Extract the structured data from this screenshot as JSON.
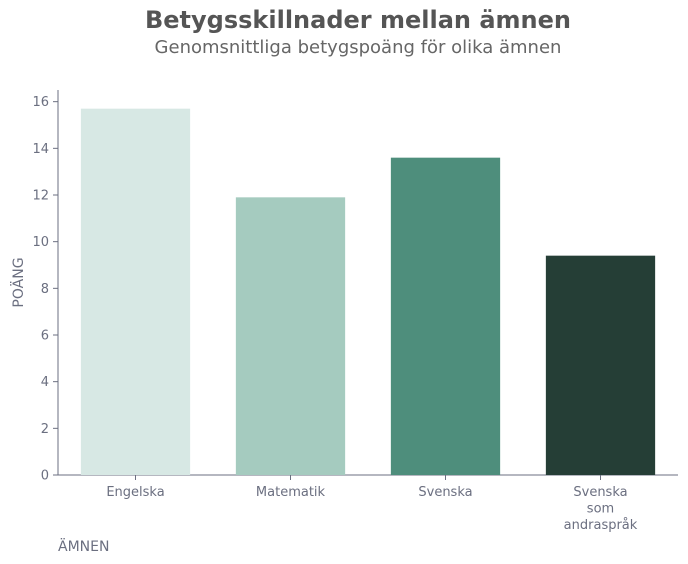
{
  "chart_data": {
    "type": "bar",
    "title": "Betygsskillnader mellan ämnen",
    "subtitle": "Genomsnittliga betygspoäng för olika ämnen",
    "xlabel": "ÄMNEN",
    "ylabel": "POÄNG",
    "categories": [
      "Engelska",
      "Matematik",
      "Svenska",
      "Svenska som andraspråk"
    ],
    "category_lines": [
      [
        "Engelska"
      ],
      [
        "Matematik"
      ],
      [
        "Svenska"
      ],
      [
        "Svenska",
        "som",
        "andraspråk"
      ]
    ],
    "values": [
      15.7,
      11.9,
      13.6,
      9.4
    ],
    "colors": [
      "#d7e8e4",
      "#a5cbbf",
      "#4e8e7c",
      "#253e36"
    ],
    "ylim": [
      0,
      16.5
    ],
    "yticks": [
      0,
      2,
      4,
      6,
      8,
      10,
      12,
      14,
      16
    ],
    "grid": false,
    "legend": "none"
  }
}
